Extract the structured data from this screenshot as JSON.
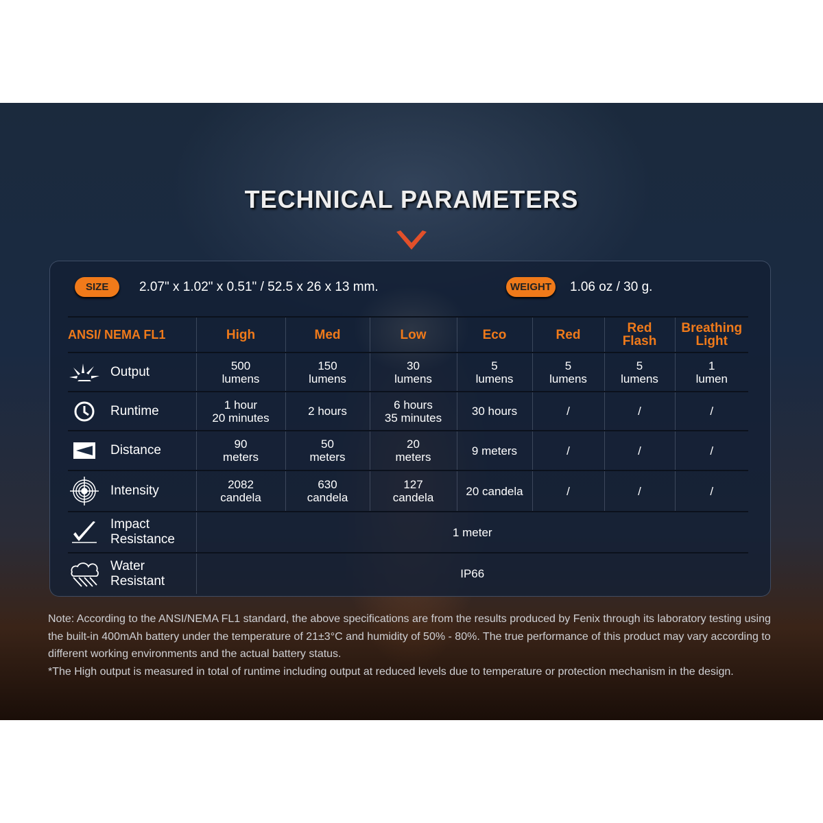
{
  "title": "TECHNICAL PARAMETERS",
  "size": {
    "label": "SIZE",
    "value": "2.07\" x 1.02\" x 0.51\" / 52.5 x 26 x 13 mm."
  },
  "weight": {
    "label": "WEIGHT",
    "value": "1.06 oz / 30 g."
  },
  "colors": {
    "accent": "#f07a1a"
  },
  "table": {
    "headers": [
      "ANSI/ NEMA  FL1",
      "High",
      "Med",
      "Low",
      "Eco",
      "Red",
      "Red\nFlash",
      "Breathing\nLight"
    ],
    "rows": [
      {
        "icon": "sun-rays-icon",
        "label": "Output",
        "cells": [
          "500\nlumens",
          "150\nlumens",
          "30\nlumens",
          "5\nlumens",
          "5\nlumens",
          "5\nlumens",
          "1\nlumen"
        ]
      },
      {
        "icon": "clock-icon",
        "label": "Runtime",
        "cells": [
          "1 hour\n20 minutes",
          "2 hours",
          "6 hours\n35 minutes",
          "30 hours",
          "/",
          "/",
          "/"
        ]
      },
      {
        "icon": "beam-distance-icon",
        "label": "Distance",
        "cells": [
          "90\nmeters",
          "50\nmeters",
          "20\nmeters",
          "9 meters",
          "/",
          "/",
          "/"
        ]
      },
      {
        "icon": "target-icon",
        "label": "Intensity",
        "cells": [
          "2082\ncandela",
          "630\ncandela",
          "127\ncandela",
          "20 candela",
          "/",
          "/",
          "/"
        ]
      },
      {
        "icon": "impact-icon",
        "label": "Impact\nResistance",
        "span": "1 meter"
      },
      {
        "icon": "rain-cloud-icon",
        "label": "Water\nResistant",
        "span": "IP66"
      }
    ]
  },
  "notes": [
    "Note: According to the ANSI/NEMA FL1 standard, the above specifications are from the results produced by Fenix through its laboratory testing using the built-in 400mAh battery under the temperature of 21±3°C and humidity of 50% - 80%. The true performance of this product may vary according to different working environments and the actual battery status.",
    "*The High output is measured in total of runtime including output at reduced levels due to temperature or protection mechanism in the design."
  ]
}
